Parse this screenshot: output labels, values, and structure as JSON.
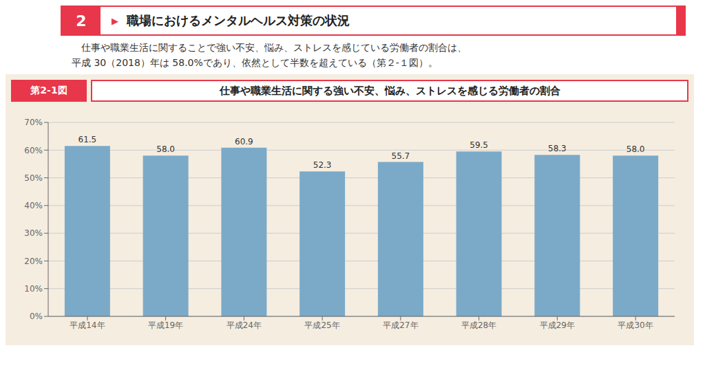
{
  "chart_data": {
    "type": "bar",
    "title": "仕事や職業生活に関する強い不安、悩み、ストレスを感じる労働者の割合",
    "subtitle": [
      "　仕事や職業生活に関することで強い不安、悩み、ストレスを感じている労働者の割合は、",
      "平成 30（2018）年は 58.0%であり、依然として半数を超えている（第２-１図）。"
    ],
    "annotations": [
      "2",
      "▶",
      "職場におけるメンタルヘルス対策の状況",
      "第2-1図"
    ],
    "categories": [
      "平成14年",
      "平成19年",
      "平成24年",
      "平成25年",
      "平成27年",
      "平成28年",
      "平成29年",
      "平成30年"
    ],
    "values": [
      61.5,
      58.0,
      60.9,
      52.3,
      55.7,
      59.5,
      58.3,
      58.0
    ],
    "value_labels": [
      "61.5",
      "58.0",
      "60.9",
      "52.3",
      "55.7",
      "59.5",
      "58.3",
      "58.0"
    ],
    "color": "#7baac8",
    "ylim": [
      0,
      70
    ],
    "yticks": [
      {
        "value": 0,
        "label": "0%"
      },
      {
        "value": 10,
        "label": "10%"
      },
      {
        "value": 20,
        "label": "20%"
      },
      {
        "value": 30,
        "label": "30%"
      },
      {
        "value": 40,
        "label": "40%"
      },
      {
        "value": 50,
        "label": "50%"
      },
      {
        "value": 60,
        "label": "60%"
      },
      {
        "value": 70,
        "label": "70%"
      }
    ],
    "grid": true,
    "data_labels": true
  }
}
